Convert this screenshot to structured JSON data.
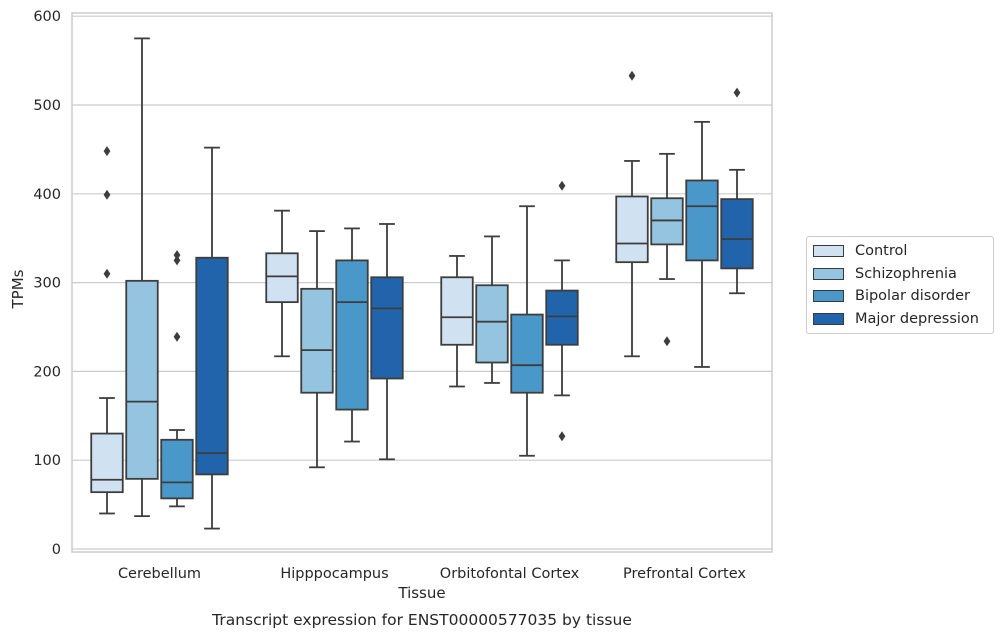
{
  "chart_data": {
    "type": "boxplot",
    "xlabel": "Tissue",
    "ylabel": "TPMs",
    "caption": "Transcript expression for ENST00000577035 by tissue",
    "ylim": [
      -2,
      603
    ],
    "yticks": [
      0,
      100,
      200,
      300,
      400,
      500,
      600
    ],
    "grid": "horizontal",
    "legend_position": "right",
    "categories": [
      "Cerebellum",
      "Hipppocampus",
      "Orbitofontal Cortex",
      "Prefrontal Cortex"
    ],
    "series": [
      {
        "name": "Control",
        "color": "#d0e1f2",
        "boxes": [
          {
            "whisker_low": 40,
            "q1": 64,
            "median": 78,
            "q3": 130,
            "whisker_high": 170,
            "outliers": [
              310,
              399,
              448
            ]
          },
          {
            "whisker_low": 217,
            "q1": 278,
            "median": 307,
            "q3": 333,
            "whisker_high": 381,
            "outliers": []
          },
          {
            "whisker_low": 183,
            "q1": 230,
            "median": 261,
            "q3": 306,
            "whisker_high": 330,
            "outliers": []
          },
          {
            "whisker_low": 217,
            "q1": 323,
            "median": 344,
            "q3": 397,
            "whisker_high": 437,
            "outliers": [
              533
            ]
          }
        ]
      },
      {
        "name": "Schizophrenia",
        "color": "#94c4df",
        "boxes": [
          {
            "whisker_low": 37,
            "q1": 79,
            "median": 166,
            "q3": 302,
            "whisker_high": 575,
            "outliers": []
          },
          {
            "whisker_low": 92,
            "q1": 176,
            "median": 224,
            "q3": 293,
            "whisker_high": 358,
            "outliers": []
          },
          {
            "whisker_low": 187,
            "q1": 210,
            "median": 256,
            "q3": 297,
            "whisker_high": 352,
            "outliers": []
          },
          {
            "whisker_low": 304,
            "q1": 343,
            "median": 370,
            "q3": 395,
            "whisker_high": 445,
            "outliers": [
              234
            ]
          }
        ]
      },
      {
        "name": "Bipolar disorder",
        "color": "#4a98c9",
        "boxes": [
          {
            "whisker_low": 48,
            "q1": 57,
            "median": 75,
            "q3": 123,
            "whisker_high": 134,
            "outliers": [
              239,
              325,
              331
            ]
          },
          {
            "whisker_low": 121,
            "q1": 157,
            "median": 278,
            "q3": 325,
            "whisker_high": 361,
            "outliers": []
          },
          {
            "whisker_low": 105,
            "q1": 176,
            "median": 207,
            "q3": 264,
            "whisker_high": 386,
            "outliers": []
          },
          {
            "whisker_low": 205,
            "q1": 325,
            "median": 386,
            "q3": 415,
            "whisker_high": 481,
            "outliers": []
          }
        ]
      },
      {
        "name": "Major depression",
        "color": "#2164ab",
        "boxes": [
          {
            "whisker_low": 23,
            "q1": 84,
            "median": 108,
            "q3": 328,
            "whisker_high": 452,
            "outliers": []
          },
          {
            "whisker_low": 101,
            "q1": 192,
            "median": 271,
            "q3": 306,
            "whisker_high": 366,
            "outliers": []
          },
          {
            "whisker_low": 173,
            "q1": 230,
            "median": 262,
            "q3": 291,
            "whisker_high": 325,
            "outliers": [
              127,
              409
            ]
          },
          {
            "whisker_low": 288,
            "q1": 316,
            "median": 349,
            "q3": 394,
            "whisker_high": 427,
            "outliers": [
              514
            ]
          }
        ]
      }
    ]
  }
}
